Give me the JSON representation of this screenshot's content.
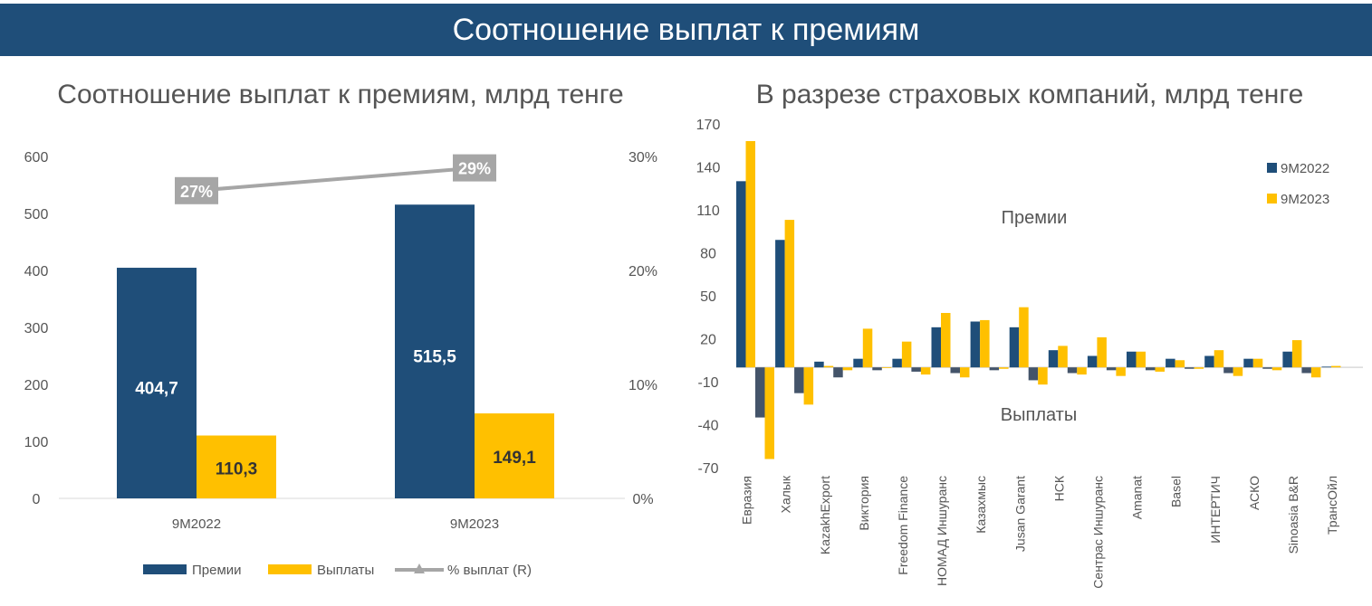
{
  "header": {
    "title": "Соотношение выплат к премиям"
  },
  "colors": {
    "header_bg": "#1F4E79",
    "series_2022": "#1F4E79",
    "series_2023": "#FFC000",
    "payouts_2022": "#44546A",
    "line": "#A6A6A6"
  },
  "chart_data": [
    {
      "type": "bar",
      "title": "Соотношение выплат к премиям, млрд тенге",
      "categories": [
        "9M2022",
        "9M2023"
      ],
      "series": [
        {
          "name": "Премии",
          "values": [
            404.7,
            515.5
          ],
          "labels": [
            "404,7",
            "515,5"
          ]
        },
        {
          "name": "Выплаты",
          "values": [
            110.3,
            149.1
          ],
          "labels": [
            "110,3",
            "149,1"
          ]
        },
        {
          "name": "% выплат (R)",
          "type": "line",
          "axis": "right",
          "values": [
            27,
            29
          ],
          "labels": [
            "27%",
            "29%"
          ]
        }
      ],
      "ylim": [
        0,
        600
      ],
      "yticks": [
        "0",
        "100",
        "200",
        "300",
        "400",
        "500",
        "600"
      ],
      "y2lim": [
        0,
        30
      ],
      "y2ticks": [
        "0%",
        "10%",
        "20%",
        "30%"
      ],
      "legend": "bottom",
      "grid": false
    },
    {
      "type": "bar",
      "title": "В разрезе страховых компаний, млрд тенге",
      "categories": [
        "Евразия",
        "Халык",
        "KazakhExport",
        "Виктория",
        "Freedom Finance",
        "НОМАД Иншуранс",
        "Казахмыс",
        "Jusan Garant",
        "НСК",
        "Сентрас Иншуранс",
        "Amanat",
        "Basel",
        "ИНТЕРТИЧ",
        "АСКО",
        "Sinoasia B&R",
        "ТрансОйл"
      ],
      "series": [
        {
          "name": "9M2022",
          "premiums": [
            130,
            89,
            4,
            6,
            6,
            28,
            32,
            28,
            12,
            8,
            11,
            6,
            8,
            6,
            11,
            0.5
          ],
          "payouts": [
            -35,
            -18,
            -7,
            -2,
            -3,
            -4,
            -2,
            -9,
            -4,
            -2,
            -2,
            -1,
            -4,
            -1,
            -4,
            0
          ]
        },
        {
          "name": "9M2023",
          "premiums": [
            158,
            103,
            1,
            27,
            18,
            38,
            33,
            42,
            15,
            21,
            11,
            5,
            12,
            6,
            19,
            1
          ],
          "payouts": [
            -64,
            -26,
            -2,
            -0.5,
            -5,
            -7,
            -1,
            -12,
            -5,
            -6,
            -3,
            -1,
            -6,
            -2,
            -7,
            0
          ]
        }
      ],
      "ylim": [
        -70,
        170
      ],
      "yticks": [
        "170",
        "140",
        "110",
        "80",
        "50",
        "20",
        "-10",
        "-40",
        "-70"
      ],
      "annotations": [
        "Премии",
        "Выплаты"
      ],
      "legend": "top-right",
      "grid": false
    }
  ]
}
